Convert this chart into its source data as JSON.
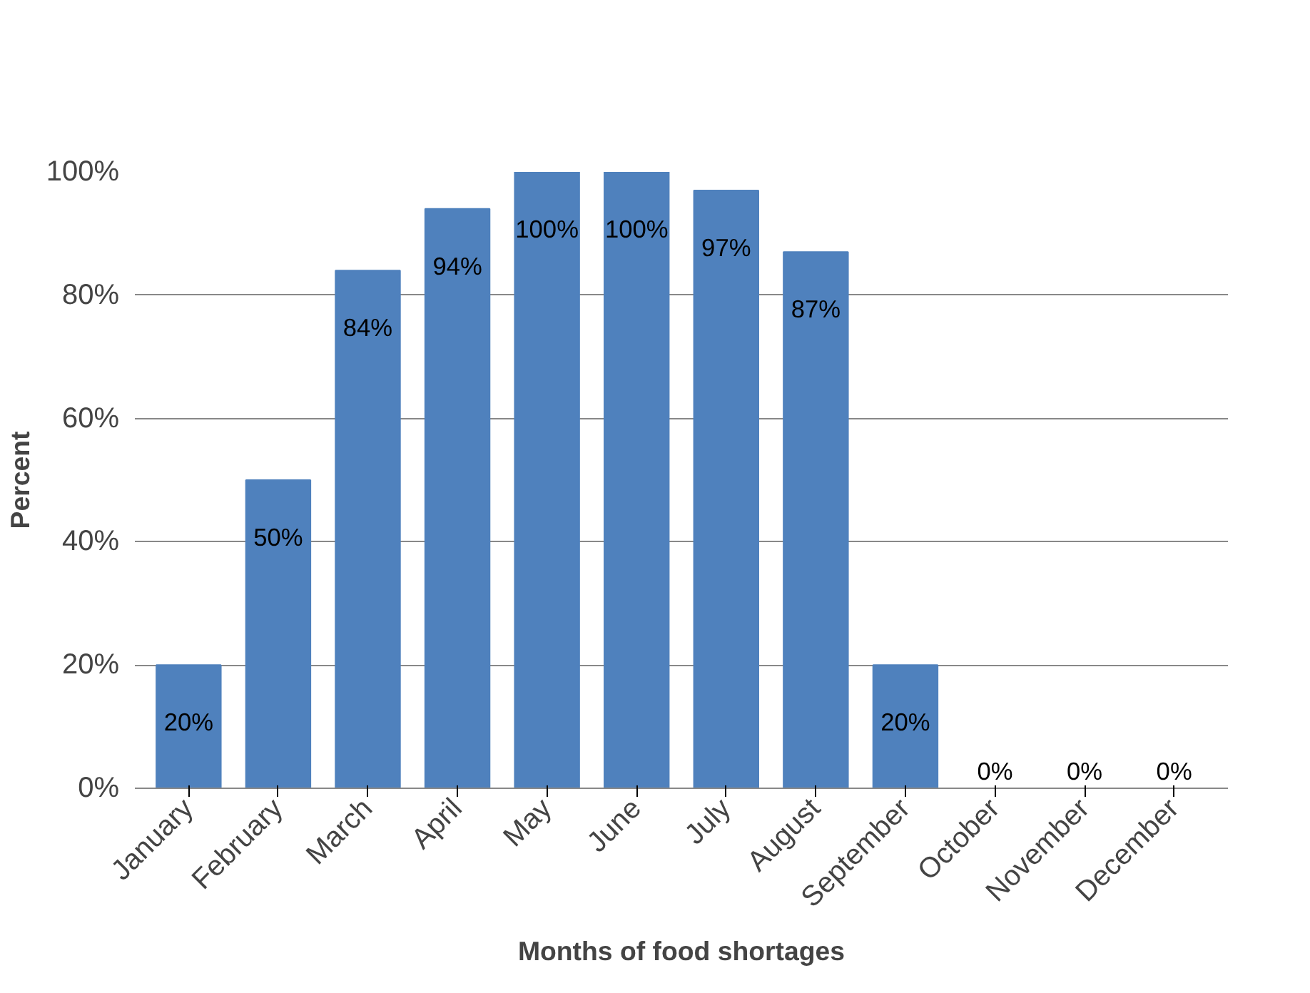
{
  "chart_data": {
    "type": "bar",
    "xlabel": "Months of food shortages",
    "ylabel": "Percent",
    "categories": [
      "January",
      "February",
      "March",
      "April",
      "May",
      "June",
      "July",
      "August",
      "September",
      "October",
      "November",
      "December"
    ],
    "values": [
      20,
      50,
      84,
      94,
      100,
      100,
      97,
      87,
      20,
      0,
      0,
      0
    ],
    "value_labels": [
      "20%",
      "50%",
      "84%",
      "94%",
      "100%",
      "100%",
      "97%",
      "87%",
      "20%",
      "0%",
      "0%",
      "0%"
    ],
    "color": "#4f81bd",
    "ylim": [
      0,
      100
    ],
    "yticks": [
      {
        "value": 0,
        "label": "0%"
      },
      {
        "value": 20,
        "label": "20%"
      },
      {
        "value": 40,
        "label": "40%"
      },
      {
        "value": 60,
        "label": "60%"
      },
      {
        "value": 80,
        "label": "80%"
      },
      {
        "value": 100,
        "label": "100%"
      }
    ],
    "grid": "y"
  }
}
